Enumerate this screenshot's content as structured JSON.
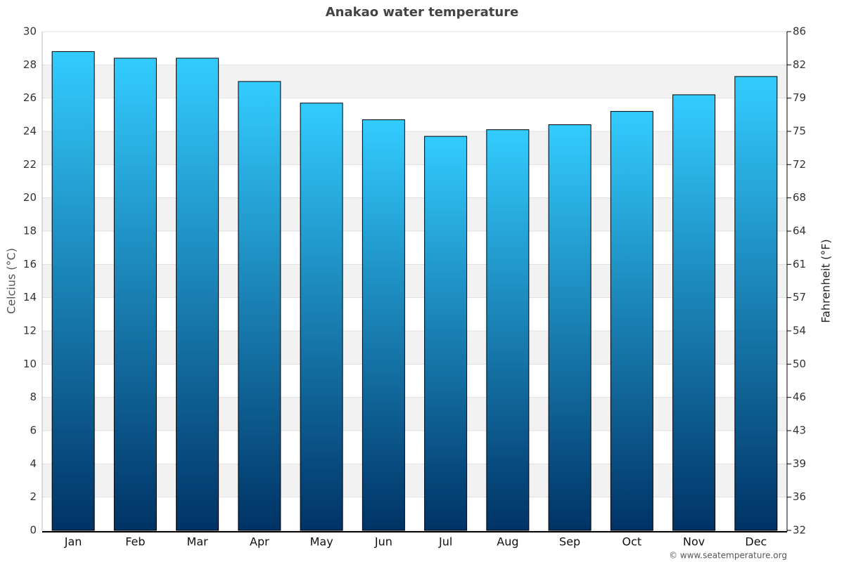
{
  "chart_data": {
    "type": "bar",
    "title": "Anakao water temperature",
    "y_label": "Celcius (°C)",
    "y2_label": "Fahrenheit (°F)",
    "credit": "© www.seatemperature.org",
    "categories": [
      "Jan",
      "Feb",
      "Mar",
      "Apr",
      "May",
      "Jun",
      "Jul",
      "Aug",
      "Sep",
      "Oct",
      "Nov",
      "Dec"
    ],
    "values": [
      28.8,
      28.4,
      28.4,
      27.0,
      25.7,
      24.7,
      23.7,
      24.1,
      24.4,
      25.2,
      26.2,
      27.3
    ],
    "colors": [
      "#33ccff",
      "#003366"
    ],
    "ylim": [
      0,
      30
    ],
    "yticks": [
      0,
      2,
      4,
      6,
      8,
      10,
      12,
      14,
      16,
      18,
      20,
      22,
      24,
      26,
      28,
      30
    ],
    "y2lim": [
      32,
      86
    ],
    "y2ticks": [
      32,
      {
        "value": 35.6,
        "label": "36"
      },
      {
        "value": 39.2,
        "label": "39"
      },
      {
        "value": 42.8,
        "label": "43"
      },
      {
        "value": 46.4,
        "label": "46"
      },
      50,
      {
        "value": 53.6,
        "label": "54"
      },
      {
        "value": 57.2,
        "label": "57"
      },
      {
        "value": 60.8,
        "label": "61"
      },
      {
        "value": 64.4,
        "label": "64"
      },
      68,
      {
        "value": 71.6,
        "label": "72"
      },
      {
        "value": 75.2,
        "label": "75"
      },
      {
        "value": 78.8,
        "label": "79"
      },
      {
        "value": 82.4,
        "label": "82"
      },
      86
    ],
    "grid": true
  }
}
